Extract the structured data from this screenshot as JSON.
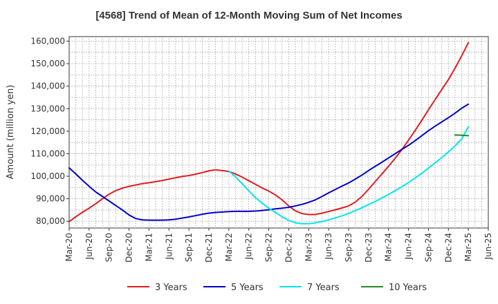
{
  "chart_data": {
    "type": "line",
    "title": "[4568]  Trend of Mean of 12-Month Moving Sum of Net Incomes",
    "ylabel": "Amount (million yen)",
    "xlabel": "",
    "ylim": [
      77000,
      162000
    ],
    "y_ticks": [
      80000,
      90000,
      100000,
      110000,
      120000,
      130000,
      140000,
      150000,
      160000
    ],
    "y_tick_labels": [
      "80,000",
      "90,000",
      "100,000",
      "110,000",
      "120,000",
      "130,000",
      "140,000",
      "150,000",
      "160,000"
    ],
    "x_tick_labels": [
      "Mar-20",
      "Jun-20",
      "Sep-20",
      "Dec-20",
      "Mar-21",
      "Jun-21",
      "Sep-21",
      "Dec-21",
      "Mar-22",
      "Jun-22",
      "Sep-22",
      "Dec-22",
      "Mar-23",
      "Jun-23",
      "Sep-23",
      "Dec-23",
      "Mar-24",
      "Jun-24",
      "Sep-24",
      "Dec-24",
      "Mar-25",
      "Jun-25"
    ],
    "grid": true,
    "legend_position": "bottom",
    "series": [
      {
        "name": "3 Years",
        "color": "#e31a1c",
        "x": [
          "Mar-20",
          "Apr-20",
          "May-20",
          "Jun-20",
          "Jul-20",
          "Aug-20",
          "Sep-20",
          "Oct-20",
          "Nov-20",
          "Dec-20",
          "Jan-21",
          "Feb-21",
          "Mar-21",
          "Apr-21",
          "May-21",
          "Jun-21",
          "Jul-21",
          "Aug-21",
          "Sep-21",
          "Oct-21",
          "Nov-21",
          "Dec-21",
          "Jan-22",
          "Feb-22",
          "Mar-22",
          "Apr-22",
          "May-22",
          "Jun-22",
          "Jul-22",
          "Aug-22",
          "Sep-22",
          "Oct-22",
          "Nov-22",
          "Dec-22",
          "Jan-23",
          "Feb-23",
          "Mar-23",
          "Apr-23",
          "May-23",
          "Jun-23",
          "Jul-23",
          "Aug-23",
          "Sep-23",
          "Oct-23",
          "Nov-23",
          "Dec-23",
          "Jan-24",
          "Feb-24",
          "Mar-24",
          "Apr-24",
          "May-24",
          "Jun-24",
          "Jul-24",
          "Aug-24",
          "Sep-24",
          "Oct-24",
          "Nov-24",
          "Dec-24",
          "Jan-25",
          "Feb-25",
          "Mar-25"
        ],
        "values": [
          79800,
          82000,
          84000,
          85800,
          87800,
          90000,
          92000,
          93600,
          94700,
          95500,
          96100,
          96700,
          97100,
          97600,
          98100,
          98700,
          99300,
          99900,
          100300,
          100900,
          101600,
          102400,
          102800,
          102500,
          102100,
          101000,
          99600,
          98000,
          96400,
          94800,
          93400,
          91700,
          89500,
          86800,
          84600,
          83400,
          83000,
          83000,
          83600,
          84300,
          85100,
          85900,
          86800,
          88500,
          91000,
          94200,
          97600,
          101000,
          104400,
          108000,
          111800,
          116000,
          120300,
          124800,
          129500,
          134000,
          138500,
          142900,
          148000,
          153500,
          159300
        ]
      },
      {
        "name": "5 Years",
        "color": "#0000cc",
        "x": [
          "Mar-20",
          "Apr-20",
          "May-20",
          "Jun-20",
          "Jul-20",
          "Aug-20",
          "Sep-20",
          "Oct-20",
          "Nov-20",
          "Dec-20",
          "Jan-21",
          "Feb-21",
          "Mar-21",
          "Apr-21",
          "May-21",
          "Jun-21",
          "Jul-21",
          "Aug-21",
          "Sep-21",
          "Oct-21",
          "Nov-21",
          "Dec-21",
          "Jan-22",
          "Feb-22",
          "Mar-22",
          "Apr-22",
          "May-22",
          "Jun-22",
          "Jul-22",
          "Aug-22",
          "Sep-22",
          "Oct-22",
          "Nov-22",
          "Dec-22",
          "Jan-23",
          "Feb-23",
          "Mar-23",
          "Apr-23",
          "May-23",
          "Jun-23",
          "Jul-23",
          "Aug-23",
          "Sep-23",
          "Oct-23",
          "Nov-23",
          "Dec-23",
          "Jan-24",
          "Feb-24",
          "Mar-24",
          "Apr-24",
          "May-24",
          "Jun-24",
          "Jul-24",
          "Aug-24",
          "Sep-24",
          "Oct-24",
          "Nov-24",
          "Dec-24",
          "Jan-25",
          "Feb-25",
          "Mar-25"
        ],
        "values": [
          103700,
          101000,
          98200,
          95500,
          93000,
          91000,
          89000,
          87000,
          85000,
          82800,
          81200,
          80600,
          80500,
          80500,
          80500,
          80600,
          80900,
          81400,
          81900,
          82500,
          83100,
          83600,
          83900,
          84100,
          84300,
          84400,
          84400,
          84400,
          84500,
          84800,
          85100,
          85500,
          85800,
          86200,
          86800,
          87500,
          88400,
          89500,
          91000,
          92600,
          94100,
          95600,
          97000,
          98700,
          100500,
          102500,
          104400,
          106200,
          108100,
          110000,
          111900,
          113700,
          115800,
          118000,
          120200,
          122200,
          124100,
          126000,
          128000,
          130200,
          132000
        ]
      },
      {
        "name": "7 Years",
        "color": "#00e5ee",
        "x": [
          "Mar-22",
          "Apr-22",
          "May-22",
          "Jun-22",
          "Jul-22",
          "Aug-22",
          "Sep-22",
          "Oct-22",
          "Nov-22",
          "Dec-22",
          "Jan-23",
          "Feb-23",
          "Mar-23",
          "Apr-23",
          "May-23",
          "Jun-23",
          "Jul-23",
          "Aug-23",
          "Sep-23",
          "Oct-23",
          "Nov-23",
          "Dec-23",
          "Jan-24",
          "Feb-24",
          "Mar-24",
          "Apr-24",
          "May-24",
          "Jun-24",
          "Jul-24",
          "Aug-24",
          "Sep-24",
          "Oct-24",
          "Nov-24",
          "Dec-24",
          "Jan-25",
          "Feb-25",
          "Mar-25"
        ],
        "values": [
          102300,
          99700,
          96700,
          93500,
          90500,
          88000,
          85800,
          83900,
          82000,
          80400,
          79300,
          78900,
          78900,
          79300,
          79900,
          80600,
          81500,
          82400,
          83500,
          84700,
          86000,
          87400,
          88800,
          90300,
          91900,
          93600,
          95300,
          97200,
          99200,
          101300,
          103600,
          105900,
          108300,
          110800,
          113500,
          116500,
          122000
        ]
      },
      {
        "name": "10 Years",
        "color": "#228b22",
        "x": [
          "Jan-25",
          "Feb-25",
          "Mar-25"
        ],
        "values": [
          118300,
          118200,
          118000
        ]
      }
    ]
  }
}
